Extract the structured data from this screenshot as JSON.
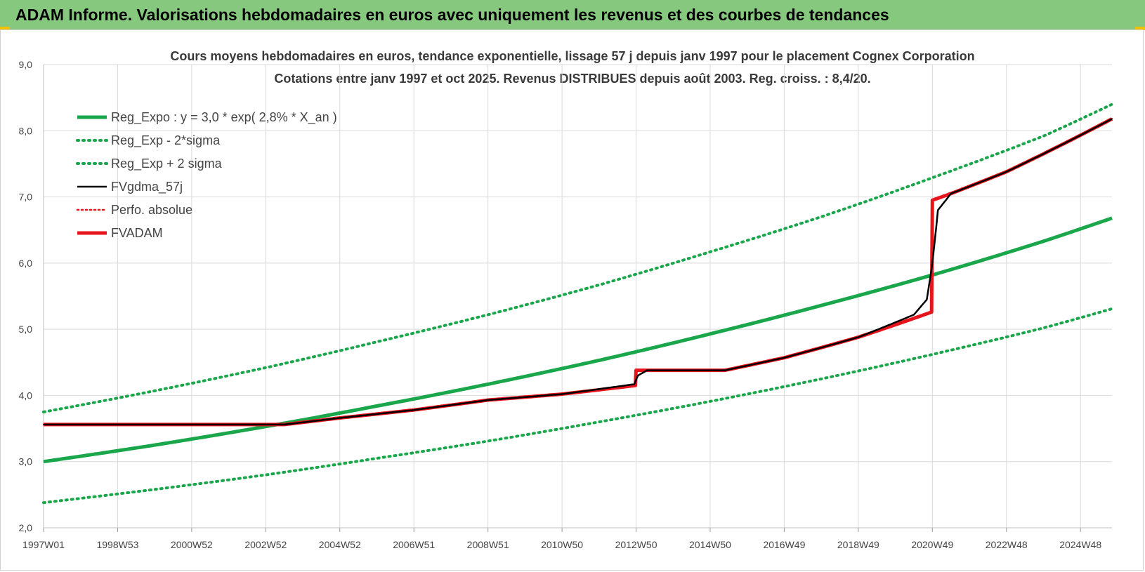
{
  "banner": {
    "title": "ADAM Informe. Valorisations hebdomadaires en euros avec uniquement les revenus et des courbes de tendances"
  },
  "colors": {
    "banner_bg": "#86c97e",
    "green": "#1aa64a",
    "red": "#e8141b",
    "black": "#000000",
    "grid": "#d9d9d9"
  },
  "chart_data": {
    "type": "line",
    "title": "Cours moyens hebdomadaires en euros, tendance exponentielle, lissage 57 j depuis janv 1997 pour le placement Cognex Corporation",
    "subtitle": "Cotations entre janv 1997 et oct 2025. Revenus DISTRIBUES depuis août 2003. Reg. croiss. : 8,4/20.",
    "xlabel": "",
    "ylabel": "",
    "ylim": [
      2.0,
      9.0
    ],
    "yticks": [
      "2,0",
      "3,0",
      "4,0",
      "5,0",
      "6,0",
      "7,0",
      "8,0",
      "9,0"
    ],
    "xlim": [
      1997.0,
      2025.85
    ],
    "xticks": [
      {
        "label": "1997W01",
        "x": 1997.0
      },
      {
        "label": "1998W53",
        "x": 1999.0
      },
      {
        "label": "2000W52",
        "x": 2001.0
      },
      {
        "label": "2002W52",
        "x": 2003.0
      },
      {
        "label": "2004W52",
        "x": 2005.0
      },
      {
        "label": "2006W51",
        "x": 2007.0
      },
      {
        "label": "2008W51",
        "x": 2009.0
      },
      {
        "label": "2010W50",
        "x": 2011.0
      },
      {
        "label": "2012W50",
        "x": 2013.0
      },
      {
        "label": "2014W50",
        "x": 2015.0
      },
      {
        "label": "2016W49",
        "x": 2017.0
      },
      {
        "label": "2018W49",
        "x": 2019.0
      },
      {
        "label": "2020W49",
        "x": 2021.0
      },
      {
        "label": "2022W48",
        "x": 2023.0
      },
      {
        "label": "2024W48",
        "x": 2025.0
      }
    ],
    "grid": true,
    "legend_position": "top-left",
    "series": [
      {
        "name": "Reg_Expo : y = 3,0 * exp( 2,8% *  X_an )",
        "color": "#1aa64a",
        "style": "solid",
        "x": [
          1997.0,
          2000.0,
          2003.0,
          2006.0,
          2009.0,
          2012.0,
          2015.0,
          2018.0,
          2021.0,
          2024.0,
          2025.85
        ],
        "y": [
          3.0,
          3.25,
          3.53,
          3.84,
          4.17,
          4.53,
          4.93,
          5.36,
          5.82,
          6.33,
          6.68
        ]
      },
      {
        "name": "Reg_Exp - 2*sigma",
        "color": "#1aa64a",
        "style": "dotted",
        "x": [
          1997.0,
          2000.0,
          2003.0,
          2006.0,
          2009.0,
          2012.0,
          2015.0,
          2018.0,
          2021.0,
          2024.0,
          2025.85
        ],
        "y": [
          2.38,
          2.58,
          2.8,
          3.05,
          3.31,
          3.6,
          3.91,
          4.25,
          4.62,
          5.02,
          5.31
        ]
      },
      {
        "name": "Reg_Exp + 2 sigma",
        "color": "#1aa64a",
        "style": "dotted",
        "x": [
          1997.0,
          2000.0,
          2003.0,
          2006.0,
          2009.0,
          2012.0,
          2015.0,
          2018.0,
          2021.0,
          2024.0,
          2025.85
        ],
        "y": [
          3.75,
          4.07,
          4.42,
          4.81,
          5.22,
          5.67,
          6.17,
          6.7,
          7.29,
          7.92,
          8.4
        ]
      },
      {
        "name": "FVgdma_57j",
        "color": "#000000",
        "style": "solid",
        "x": [
          1997.0,
          2003.5,
          2005.0,
          2007.0,
          2009.0,
          2011.0,
          2012.95,
          2013.05,
          2013.3,
          2015.4,
          2017.0,
          2019.0,
          2020.5,
          2020.85,
          2021.0,
          2021.15,
          2021.5,
          2023.0,
          2025.85
        ],
        "y": [
          3.56,
          3.56,
          3.66,
          3.78,
          3.93,
          4.02,
          4.17,
          4.3,
          4.38,
          4.38,
          4.57,
          4.88,
          5.22,
          5.45,
          6.0,
          6.8,
          7.05,
          7.38,
          8.18
        ]
      },
      {
        "name": "Perfo. absolue",
        "color": "#e8141b",
        "style": "dotted",
        "x": [
          1997.0,
          2003.5,
          2005.0,
          2007.0,
          2009.0,
          2011.0,
          2012.98,
          2013.0,
          2015.4,
          2017.0,
          2019.0,
          2020.98,
          2021.0,
          2021.5,
          2023.0,
          2025.85
        ],
        "y": [
          3.56,
          3.56,
          3.66,
          3.78,
          3.93,
          4.02,
          4.15,
          4.38,
          4.38,
          4.57,
          4.88,
          5.26,
          6.95,
          7.05,
          7.38,
          8.18
        ]
      },
      {
        "name": "FVADAM",
        "color": "#e8141b",
        "style": "solid",
        "x": [
          1997.0,
          2003.5,
          2005.0,
          2007.0,
          2009.0,
          2011.0,
          2012.98,
          2013.0,
          2015.4,
          2017.0,
          2019.0,
          2020.98,
          2021.0,
          2021.5,
          2023.0,
          2025.85
        ],
        "y": [
          3.56,
          3.56,
          3.66,
          3.78,
          3.93,
          4.02,
          4.15,
          4.38,
          4.38,
          4.57,
          4.88,
          5.26,
          6.95,
          7.05,
          7.38,
          8.18
        ]
      }
    ]
  }
}
